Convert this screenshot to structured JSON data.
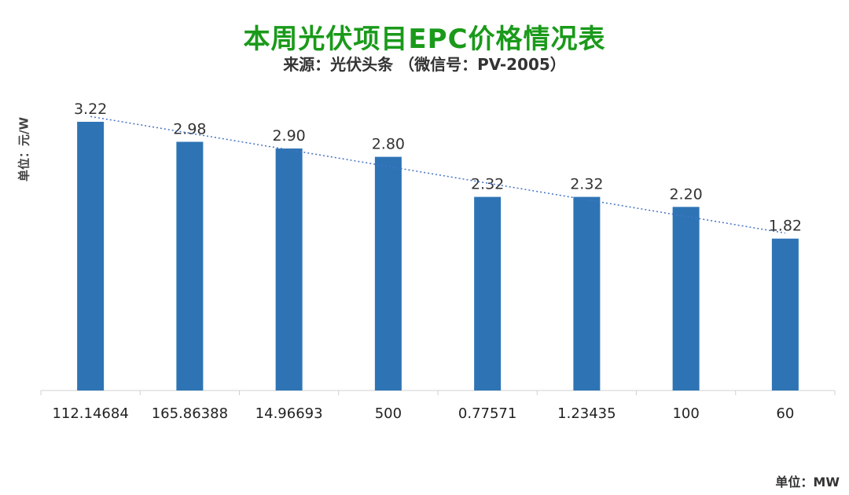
{
  "title": "本周光伏项目EPC价格情况表",
  "subtitle": "来源：光伏头条 （微信号：PV-2005）",
  "ylabel": "单位：元/W",
  "xunit_note": "单位：MW",
  "colors": {
    "title": "#1a9a1a",
    "bar": "#2e74b5",
    "trendline": "#4472c4",
    "axis": "#d0d0d0"
  },
  "chart_data": {
    "type": "bar",
    "title": "本周光伏项目EPC价格情况表",
    "subtitle": "来源：光伏头条 （微信号：PV-2005）",
    "xlabel": "单位：MW",
    "ylabel": "单位：元/W",
    "categories": [
      "112.14684",
      "165.86388",
      "14.96693",
      "500",
      "0.77571",
      "1.23435",
      "100",
      "60"
    ],
    "values": [
      3.22,
      2.98,
      2.9,
      2.8,
      2.32,
      2.32,
      2.2,
      1.82
    ],
    "data_labels": [
      "3.22",
      "2.98",
      "2.90",
      "2.80",
      "2.32",
      "2.32",
      "2.20",
      "1.82"
    ],
    "ylim": [
      0,
      3.22
    ],
    "trendline": "linear",
    "trendline_style": "dotted",
    "grid": false,
    "legend": "none"
  }
}
